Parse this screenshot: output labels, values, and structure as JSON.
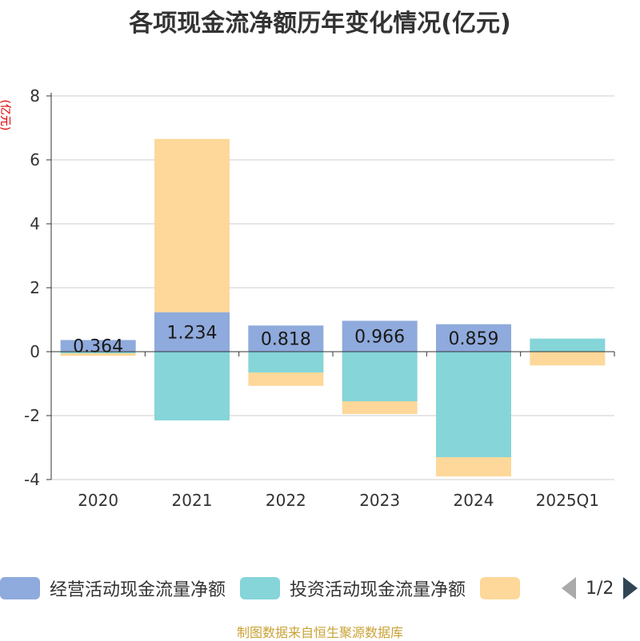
{
  "chart_data": {
    "type": "bar",
    "stacked": true,
    "title": "各项现金流净额历年变化情况(亿元)",
    "ylabel": "(亿元)",
    "xlabel": "",
    "categories": [
      "2020",
      "2021",
      "2022",
      "2023",
      "2024",
      "2025Q1"
    ],
    "ylim": [
      -4,
      8
    ],
    "yticks": [
      8,
      6,
      4,
      2,
      0,
      -2,
      -4
    ],
    "grid": true,
    "legend_position": "bottom",
    "series": [
      {
        "name": "经营活动现金流量净额",
        "color": "#8faadc",
        "values": [
          0.364,
          1.234,
          0.818,
          0.966,
          0.859,
          0.0
        ],
        "labels": [
          "0.364",
          "1.234",
          "0.818",
          "0.966",
          "0.859",
          ""
        ]
      },
      {
        "name": "投资活动现金流量净额",
        "color": "#85d5d9",
        "values": [
          -0.05,
          -2.15,
          -0.65,
          -1.55,
          -3.3,
          0.41
        ],
        "labels": [
          "",
          "",
          "",
          "",
          "",
          ""
        ]
      },
      {
        "name": "",
        "color": "#fdd89a",
        "values": [
          -0.08,
          5.42,
          -0.42,
          -0.4,
          -0.6,
          -0.43
        ],
        "labels": [
          "",
          "",
          "",
          "",
          "",
          ""
        ]
      }
    ]
  },
  "legend": {
    "items": [
      {
        "label": "经营活动现金流量净额",
        "color": "#8faadc"
      },
      {
        "label": "投资活动现金流量净额",
        "color": "#85d5d9"
      },
      {
        "label": "",
        "color": "#fdd89a"
      }
    ],
    "page_text": "1/2"
  },
  "source_note": "制图数据来自恒生聚源数据库"
}
